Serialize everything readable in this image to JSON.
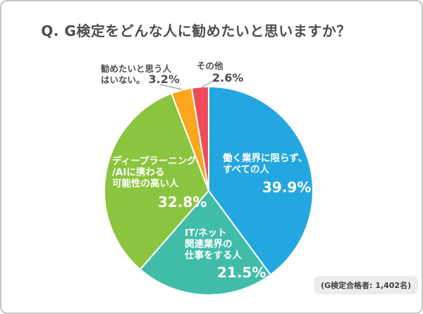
{
  "title": "Q. G検定をどんな人に勧めたいと思いますか？",
  "badge": "(G検定合格者: 1,402名)",
  "colors": {
    "blue": "#24A7E0",
    "teal": "#41BCA8",
    "green": "#8BC540",
    "orange": "#FAA61E",
    "red": "#EF4A5A",
    "text_gray": "#4D4D4D",
    "leader_line": "#999999",
    "badge_bg": "#ECECEC",
    "frame_border": "#C5C5C5"
  },
  "chart_data": {
    "type": "pie",
    "title": "Q. G検定をどんな人に勧めたいと思いますか？",
    "total": 100,
    "start_angle": "top",
    "direction": "clockwise",
    "source_note": "(G検定合格者: 1,402名)",
    "slices": [
      {
        "id": "all-people",
        "label": "働く業界に限らず、すべての人",
        "label_lines": [
          "働く業界に限らず、",
          "すべての人"
        ],
        "value": 39.9,
        "pct_label": "39.9%",
        "color": "#24A7E0",
        "label_placement": "inside"
      },
      {
        "id": "it-net",
        "label": "IT/ネット関連業界の仕事をする人",
        "label_lines": [
          "IT/ネット",
          "関連業界の",
          "仕事をする人"
        ],
        "value": 21.5,
        "pct_label": "21.5%",
        "color": "#41BCA8",
        "label_placement": "inside"
      },
      {
        "id": "deep-learning",
        "label": "ディープラーニング/AIに携わる可能性の高い人",
        "label_lines": [
          "ディープラーニング",
          "/AIに携わる",
          "可能性の高い人"
        ],
        "value": 32.8,
        "pct_label": "32.8%",
        "color": "#8BC540",
        "label_placement": "inside"
      },
      {
        "id": "no-one",
        "label": "勧めたいと思う人はいない。",
        "label_lines": [
          "勧めたいと思う人",
          "はいない。"
        ],
        "value": 3.2,
        "pct_label": "3.2%",
        "color": "#FAA61E",
        "label_placement": "outside"
      },
      {
        "id": "other",
        "label": "その他",
        "label_lines": [
          "その他"
        ],
        "value": 2.6,
        "pct_label": "2.6%",
        "color": "#EF4A5A",
        "label_placement": "outside"
      }
    ]
  }
}
